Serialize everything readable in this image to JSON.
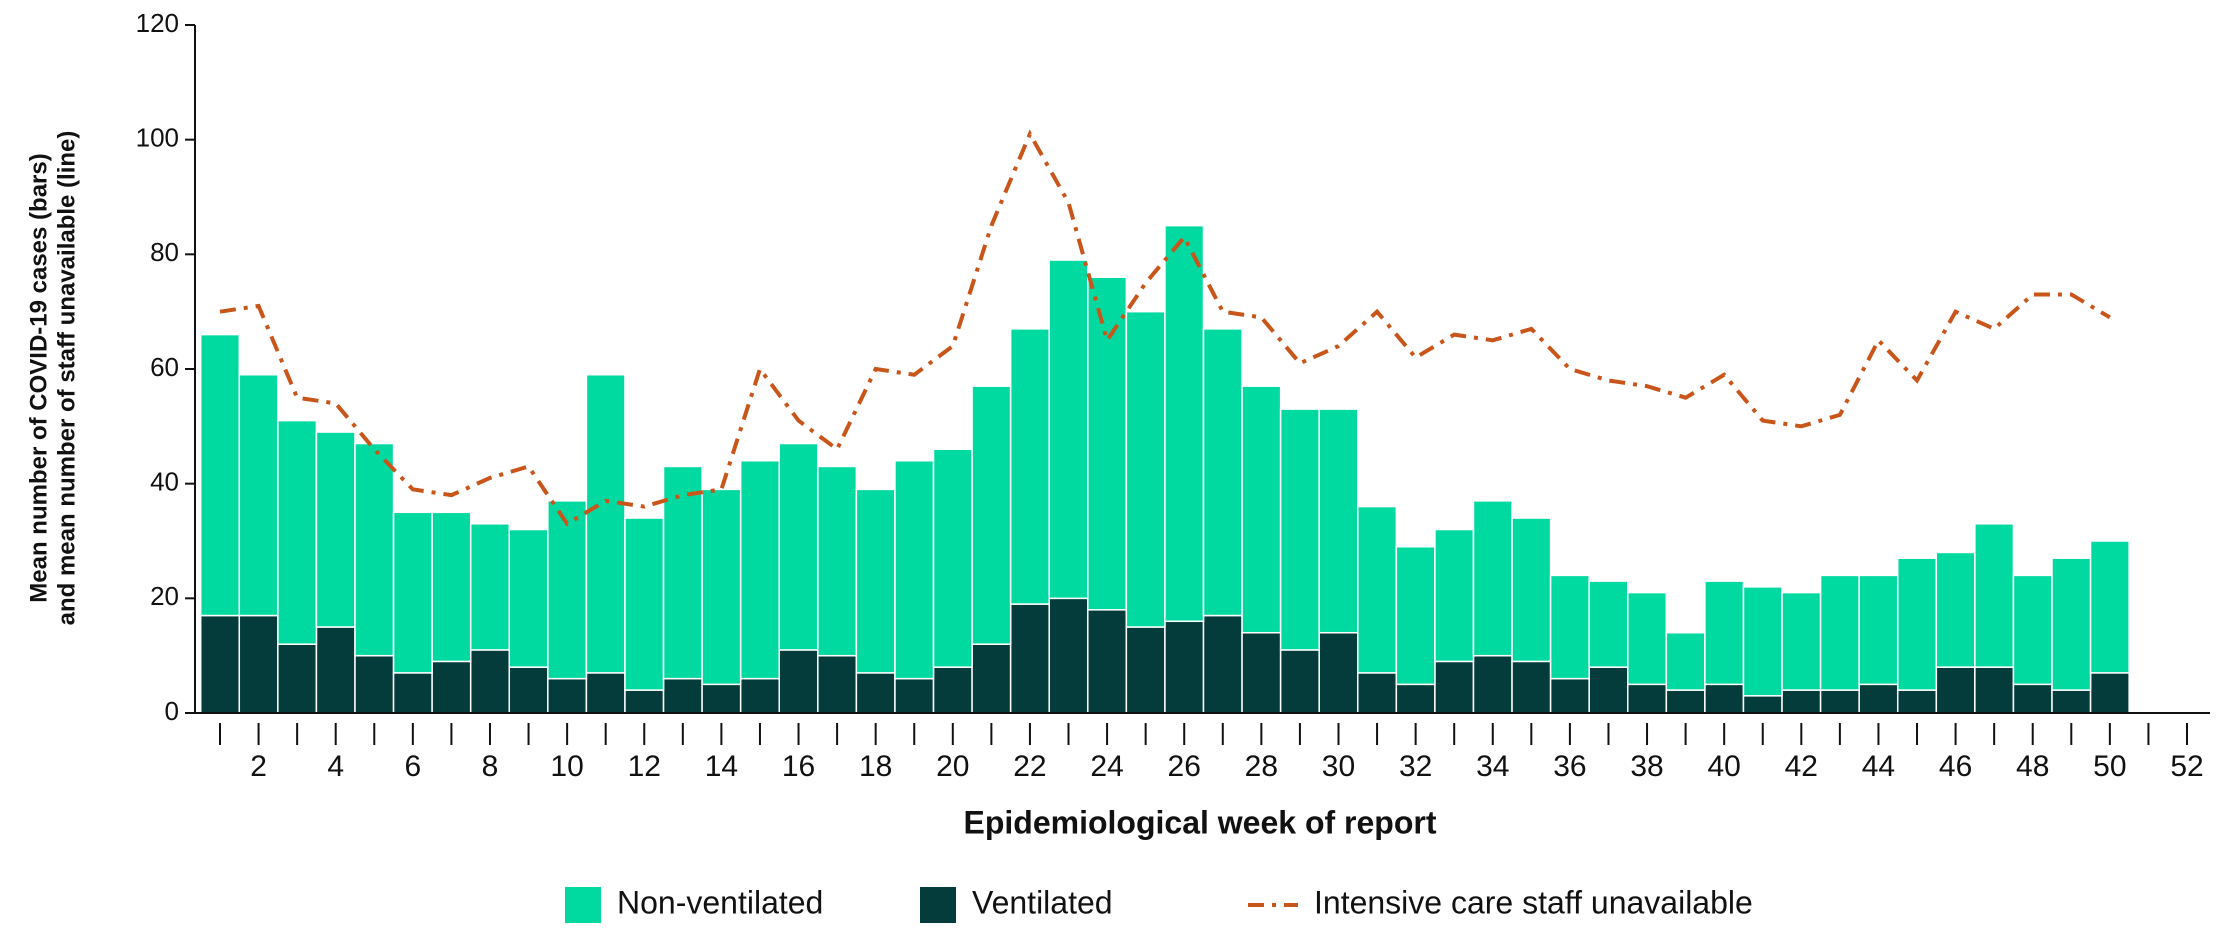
{
  "chart_data": {
    "type": "bar",
    "ylabel": [
      "Mean number of COVID-19 cases (bars)",
      "and mean number of staff unavailable (line)"
    ],
    "xlabel": "Epidemiological week of report",
    "x": [
      1,
      2,
      3,
      4,
      5,
      6,
      7,
      8,
      9,
      10,
      11,
      12,
      13,
      14,
      15,
      16,
      17,
      18,
      19,
      20,
      21,
      22,
      23,
      24,
      25,
      26,
      27,
      28,
      29,
      30,
      31,
      32,
      33,
      34,
      35,
      36,
      37,
      38,
      39,
      40,
      41,
      42,
      43,
      44,
      45,
      46,
      47,
      48,
      49,
      50,
      51,
      52
    ],
    "xlim": [
      0.5,
      52.5
    ],
    "xticks": [
      2,
      4,
      6,
      8,
      10,
      12,
      14,
      16,
      18,
      20,
      22,
      24,
      26,
      28,
      30,
      32,
      34,
      36,
      38,
      40,
      42,
      44,
      46,
      48,
      50,
      52
    ],
    "ylim": [
      0,
      120
    ],
    "yticks": [
      0,
      20,
      40,
      60,
      80,
      100,
      120
    ],
    "stacked": true,
    "series": [
      {
        "name": "Non-ventilated",
        "type": "bar",
        "color": "#00d9a0",
        "values": [
          49,
          42,
          39,
          34,
          37,
          28,
          26,
          22,
          24,
          31,
          52,
          30,
          37,
          34,
          38,
          36,
          33,
          32,
          38,
          38,
          45,
          48,
          59,
          58,
          55,
          69,
          50,
          43,
          42,
          39,
          29,
          24,
          23,
          27,
          25,
          18,
          15,
          16,
          10,
          18,
          19,
          17,
          20,
          19,
          23,
          20,
          25,
          19,
          23,
          23,
          null,
          null
        ]
      },
      {
        "name": "Ventilated",
        "type": "bar",
        "color": "#043c3c",
        "values": [
          17,
          17,
          12,
          15,
          10,
          7,
          9,
          11,
          8,
          6,
          7,
          4,
          6,
          5,
          6,
          11,
          10,
          7,
          6,
          8,
          12,
          19,
          20,
          18,
          15,
          16,
          17,
          14,
          11,
          14,
          7,
          5,
          9,
          10,
          9,
          6,
          8,
          5,
          4,
          5,
          3,
          4,
          4,
          5,
          4,
          8,
          8,
          5,
          4,
          7,
          null,
          null
        ]
      },
      {
        "name": "Intensive care staff unavailable",
        "type": "line",
        "color": "#c8561a",
        "dash": "16 8 4 8",
        "values": [
          70,
          71,
          55,
          54,
          46,
          39,
          38,
          41,
          43,
          33,
          37,
          36,
          38,
          39,
          60,
          51,
          46,
          60,
          59,
          64,
          85,
          101,
          89,
          65,
          75,
          83,
          70,
          69,
          61,
          64,
          70,
          62,
          66,
          65,
          67,
          60,
          58,
          57,
          55,
          59,
          51,
          50,
          52,
          65,
          58,
          70,
          67,
          73,
          73,
          69,
          null,
          null
        ]
      }
    ]
  }
}
